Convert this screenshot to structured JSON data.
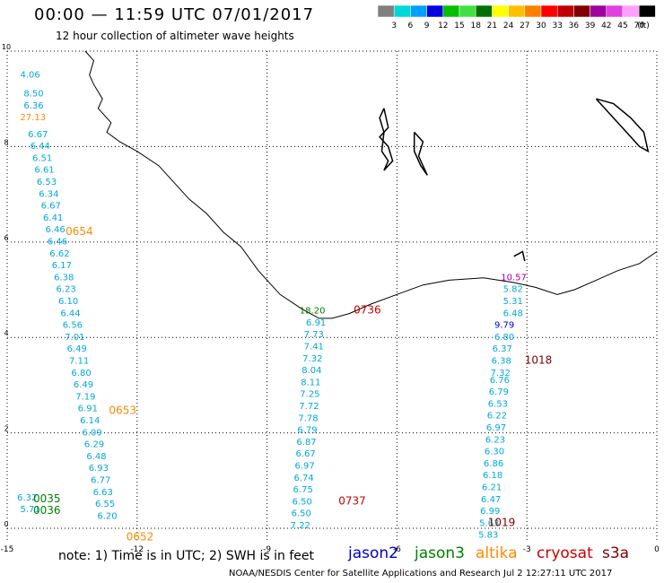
{
  "header": {
    "title": "00:00 — 11:59 UTC 07/01/2017",
    "subtitle": "12 hour collection of altimeter wave heights"
  },
  "colorbar": {
    "unit_label": "(ft)",
    "bins": [
      {
        "label": "3",
        "color": "#808080"
      },
      {
        "label": "6",
        "color": "#00d8d8"
      },
      {
        "label": "9",
        "color": "#00a0ff"
      },
      {
        "label": "12",
        "color": "#0000e0"
      },
      {
        "label": "15",
        "color": "#00c000"
      },
      {
        "label": "18",
        "color": "#40e040"
      },
      {
        "label": "21",
        "color": "#007000"
      },
      {
        "label": "24",
        "color": "#ffff00"
      },
      {
        "label": "27",
        "color": "#ffc000"
      },
      {
        "label": "30",
        "color": "#ff8000"
      },
      {
        "label": "33",
        "color": "#ff0000"
      },
      {
        "label": "36",
        "color": "#c00000"
      },
      {
        "label": "39",
        "color": "#800000"
      },
      {
        "label": "42",
        "color": "#a000a0"
      },
      {
        "label": "45",
        "color": "#e040e0"
      },
      {
        "label": "70",
        "color": "#ffa0ff"
      },
      {
        "label": "",
        "color": "#000000"
      }
    ]
  },
  "axes": {
    "x_ticks": [
      "-15",
      "-12",
      "-9",
      "-6",
      "-3",
      "0"
    ],
    "y_ticks": [
      "10",
      "8",
      "6",
      "4",
      "2",
      "0"
    ],
    "grid": true
  },
  "colors": {
    "jason2": "#0000cc",
    "jason3": "#008000",
    "altika": "#ff8800",
    "cryosat": "#cc0000",
    "s3a": "#800000",
    "cyan_value": "#00a8d8"
  },
  "tracks": {
    "left": [
      {
        "v": "4.06",
        "lon": -14.7,
        "lat": 9.45
      },
      {
        "v": "8.50",
        "lon": -14.62,
        "lat": 9.05
      },
      {
        "v": "6.36",
        "lon": -14.62,
        "lat": 8.8
      },
      {
        "v": "27.13",
        "lon": -14.7,
        "lat": 8.55,
        "c": "altika"
      },
      {
        "v": "6.67",
        "lon": -14.52,
        "lat": 8.2
      },
      {
        "v": "6.44",
        "lon": -14.47,
        "lat": 7.95
      },
      {
        "v": "6.51",
        "lon": -14.42,
        "lat": 7.7
      },
      {
        "v": "6.61",
        "lon": -14.37,
        "lat": 7.45
      },
      {
        "v": "6.53",
        "lon": -14.32,
        "lat": 7.2
      },
      {
        "v": "6.34",
        "lon": -14.27,
        "lat": 6.95
      },
      {
        "v": "6.67",
        "lon": -14.22,
        "lat": 6.7
      },
      {
        "v": "6.41",
        "lon": -14.17,
        "lat": 6.45
      },
      {
        "v": "6.46",
        "lon": -14.12,
        "lat": 6.2
      },
      {
        "v": "6.46",
        "lon": -14.07,
        "lat": 5.95
      },
      {
        "v": "6.62",
        "lon": -14.02,
        "lat": 5.7
      },
      {
        "v": "6.17",
        "lon": -13.97,
        "lat": 5.45
      },
      {
        "v": "6.38",
        "lon": -13.92,
        "lat": 5.2
      },
      {
        "v": "6.23",
        "lon": -13.87,
        "lat": 4.95
      },
      {
        "v": "6.10",
        "lon": -13.82,
        "lat": 4.7
      },
      {
        "v": "6.44",
        "lon": -13.77,
        "lat": 4.45
      },
      {
        "v": "6.56",
        "lon": -13.72,
        "lat": 4.2
      },
      {
        "v": "7.01",
        "lon": -13.67,
        "lat": 3.95
      },
      {
        "v": "6.49",
        "lon": -13.62,
        "lat": 3.7
      },
      {
        "v": "7.11",
        "lon": -13.57,
        "lat": 3.45
      },
      {
        "v": "6.80",
        "lon": -13.52,
        "lat": 3.2
      },
      {
        "v": "6.49",
        "lon": -13.47,
        "lat": 2.95
      },
      {
        "v": "7.19",
        "lon": -13.42,
        "lat": 2.7
      },
      {
        "v": "6.91",
        "lon": -13.37,
        "lat": 2.45
      },
      {
        "v": "6.14",
        "lon": -13.32,
        "lat": 2.2
      },
      {
        "v": "6.09",
        "lon": -13.27,
        "lat": 1.95
      },
      {
        "v": "6.29",
        "lon": -13.22,
        "lat": 1.7
      },
      {
        "v": "6.48",
        "lon": -13.17,
        "lat": 1.45
      },
      {
        "v": "6.93",
        "lon": -13.12,
        "lat": 1.2
      },
      {
        "v": "6.77",
        "lon": -13.07,
        "lat": 0.95
      },
      {
        "v": "6.63",
        "lon": -13.02,
        "lat": 0.7
      },
      {
        "v": "6.55",
        "lon": -12.97,
        "lat": 0.45
      },
      {
        "v": "6.20",
        "lon": -12.92,
        "lat": 0.2
      },
      {
        "v": "6.32",
        "lon": -14.77,
        "lat": 0.58
      },
      {
        "v": "5.71",
        "lon": -14.7,
        "lat": 0.34
      }
    ],
    "middle": [
      {
        "v": "18.20",
        "lon": -8.25,
        "lat": 4.5,
        "c": "jason3"
      },
      {
        "v": "6.91",
        "lon": -8.1,
        "lat": 4.25
      },
      {
        "v": "7.73",
        "lon": -8.15,
        "lat": 4.0
      },
      {
        "v": "7.41",
        "lon": -8.15,
        "lat": 3.75
      },
      {
        "v": "7.32",
        "lon": -8.18,
        "lat": 3.5
      },
      {
        "v": "8.04",
        "lon": -8.2,
        "lat": 3.25
      },
      {
        "v": "8.11",
        "lon": -8.22,
        "lat": 3.0
      },
      {
        "v": "7.25",
        "lon": -8.24,
        "lat": 2.75
      },
      {
        "v": "7.72",
        "lon": -8.26,
        "lat": 2.5
      },
      {
        "v": "7.78",
        "lon": -8.28,
        "lat": 2.25
      },
      {
        "v": "6.79",
        "lon": -8.3,
        "lat": 2.0
      },
      {
        "v": "6.87",
        "lon": -8.32,
        "lat": 1.75
      },
      {
        "v": "6.67",
        "lon": -8.34,
        "lat": 1.5
      },
      {
        "v": "6.97",
        "lon": -8.36,
        "lat": 1.25
      },
      {
        "v": "6.74",
        "lon": -8.38,
        "lat": 1.0
      },
      {
        "v": "6.75",
        "lon": -8.4,
        "lat": 0.75
      },
      {
        "v": "6.50",
        "lon": -8.42,
        "lat": 0.5
      },
      {
        "v": "6.50",
        "lon": -8.44,
        "lat": 0.25
      },
      {
        "v": "7.22",
        "lon": -8.46,
        "lat": 0.0
      }
    ],
    "right": [
      {
        "v": "10.57",
        "lon": -3.6,
        "lat": 5.2,
        "c": "s3a_purple"
      },
      {
        "v": "5.82",
        "lon": -3.55,
        "lat": 4.95
      },
      {
        "v": "5.31",
        "lon": -3.55,
        "lat": 4.7
      },
      {
        "v": "6.48",
        "lon": -3.55,
        "lat": 4.45
      },
      {
        "v": "9.79",
        "lon": -3.75,
        "lat": 4.2,
        "c": "jason2"
      },
      {
        "v": "6.80",
        "lon": -3.75,
        "lat": 3.95
      },
      {
        "v": "6.37",
        "lon": -3.8,
        "lat": 3.7
      },
      {
        "v": "6.38",
        "lon": -3.82,
        "lat": 3.45
      },
      {
        "v": "7.32",
        "lon": -3.84,
        "lat": 3.2
      },
      {
        "v": "6.76",
        "lon": -3.86,
        "lat": 3.05
      },
      {
        "v": "6.79",
        "lon": -3.88,
        "lat": 2.8
      },
      {
        "v": "6.53",
        "lon": -3.9,
        "lat": 2.55
      },
      {
        "v": "6.22",
        "lon": -3.92,
        "lat": 2.3
      },
      {
        "v": "6.97",
        "lon": -3.94,
        "lat": 2.05
      },
      {
        "v": "6.23",
        "lon": -3.96,
        "lat": 1.8
      },
      {
        "v": "6.30",
        "lon": -3.98,
        "lat": 1.55
      },
      {
        "v": "6.86",
        "lon": -4.0,
        "lat": 1.3
      },
      {
        "v": "6.18",
        "lon": -4.02,
        "lat": 1.05
      },
      {
        "v": "6.21",
        "lon": -4.04,
        "lat": 0.8
      },
      {
        "v": "6.47",
        "lon": -4.06,
        "lat": 0.55
      },
      {
        "v": "6.99",
        "lon": -4.08,
        "lat": 0.3
      },
      {
        "v": "5.63",
        "lon": -4.1,
        "lat": 0.05
      },
      {
        "v": "5.83",
        "lon": -4.12,
        "lat": -0.2
      }
    ]
  },
  "time_labels": [
    {
      "t": "0654",
      "lon": -13.65,
      "lat": 6.15,
      "c": "altika"
    },
    {
      "t": "0653",
      "lon": -12.65,
      "lat": 2.4,
      "c": "altika"
    },
    {
      "t": "0652",
      "lon": -12.25,
      "lat": -0.25,
      "c": "altika"
    },
    {
      "t": "0035",
      "lon": -14.4,
      "lat": 0.55,
      "c": "jason3"
    },
    {
      "t": "0036",
      "lon": -14.4,
      "lat": 0.3,
      "c": "jason3"
    },
    {
      "t": "0736",
      "lon": -7.0,
      "lat": 4.5,
      "c": "cryosat"
    },
    {
      "t": "0737",
      "lon": -7.35,
      "lat": 0.5,
      "c": "cryosat"
    },
    {
      "t": "1018",
      "lon": -3.05,
      "lat": 3.45,
      "c": "s3a"
    },
    {
      "t": "1019",
      "lon": -3.9,
      "lat": 0.05,
      "c": "s3a"
    }
  ],
  "note": "note:  1) Time is in UTC; 2) SWH is in feet",
  "legend": [
    {
      "name": "jason2",
      "c": "jason2"
    },
    {
      "name": "jason3",
      "c": "jason3"
    },
    {
      "name": "altika",
      "c": "altika"
    },
    {
      "name": "cryosat",
      "c": "cryosat"
    },
    {
      "name": "s3a",
      "c": "s3a"
    }
  ],
  "footer": "NOAA/NESDIS Center for Satellite Applications and Research     Jul  2 12:27:11 UTC 2017"
}
